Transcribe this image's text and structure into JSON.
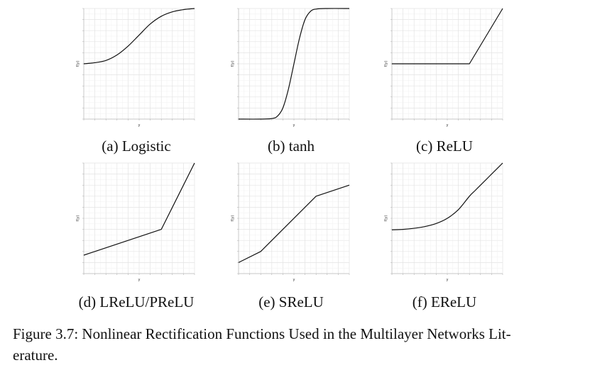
{
  "figure": {
    "caption_lines": [
      "Figure 3.7: Nonlinear Rectification Functions Used in the Multilayer Networks Lit-",
      "erature."
    ]
  },
  "chart_data": [
    {
      "type": "line",
      "panel_caption": "(a) Logistic",
      "xlabel": "y",
      "ylabel": "f(y)",
      "grid": true,
      "xlim": [
        -5,
        5
      ],
      "ylim": [
        0,
        1
      ],
      "series": [
        {
          "x": [
            -5,
            -4,
            -3,
            -2,
            -1,
            0,
            1,
            2,
            3,
            4,
            5
          ],
          "values": [
            0.5,
            0.51,
            0.53,
            0.58,
            0.66,
            0.76,
            0.86,
            0.93,
            0.97,
            0.99,
            1.0
          ]
        }
      ]
    },
    {
      "type": "line",
      "panel_caption": "(b) tanh",
      "xlabel": "y",
      "ylabel": "f(y)",
      "grid": true,
      "xlim": [
        -5,
        5
      ],
      "ylim": [
        -1,
        1
      ],
      "series": [
        {
          "x": [
            -5,
            -3,
            -2,
            -1.5,
            -1,
            -0.5,
            0,
            0.5,
            1,
            1.5,
            2,
            3,
            5
          ],
          "values": [
            -1,
            -1,
            -0.99,
            -0.95,
            -0.8,
            -0.46,
            0,
            0.46,
            0.8,
            0.95,
            0.99,
            1,
            1
          ]
        }
      ]
    },
    {
      "type": "line",
      "panel_caption": "(c) ReLU",
      "xlabel": "y",
      "ylabel": "f(y)",
      "grid": true,
      "xlim": [
        -5,
        5
      ],
      "ylim": [
        -5,
        5
      ],
      "series": [
        {
          "x": [
            -5,
            2,
            5
          ],
          "values": [
            0,
            0,
            5
          ]
        }
      ]
    },
    {
      "type": "line",
      "panel_caption": "(d) LReLU/PReLU",
      "xlabel": "y",
      "ylabel": "f(y)",
      "grid": true,
      "xlim": [
        -5,
        5
      ],
      "ylim": [
        -1,
        5
      ],
      "series": [
        {
          "x": [
            -5,
            2,
            5
          ],
          "values": [
            0,
            1.4,
            5
          ]
        }
      ]
    },
    {
      "type": "line",
      "panel_caption": "(e) SReLU",
      "xlabel": "y",
      "ylabel": "f(y)",
      "grid": true,
      "xlim": [
        -5,
        5
      ],
      "ylim": [
        -5,
        5
      ],
      "series": [
        {
          "x": [
            -5,
            -3,
            2,
            5
          ],
          "values": [
            -4,
            -3,
            2,
            3
          ]
        }
      ]
    },
    {
      "type": "line",
      "panel_caption": "(f) EReLU",
      "xlabel": "y",
      "ylabel": "f(y)",
      "grid": true,
      "xlim": [
        -5,
        5
      ],
      "ylim": [
        -5,
        5
      ],
      "series": [
        {
          "x": [
            -5,
            -4,
            -3,
            -2,
            -1,
            0,
            1,
            2,
            2.5,
            3,
            3.5,
            4,
            4.5,
            5
          ],
          "values": [
            -1.04,
            -1.0,
            -0.9,
            -0.74,
            -0.47,
            0,
            0.78,
            2.0,
            2.5,
            3.0,
            3.5,
            4.0,
            4.5,
            5.0
          ]
        }
      ]
    }
  ]
}
